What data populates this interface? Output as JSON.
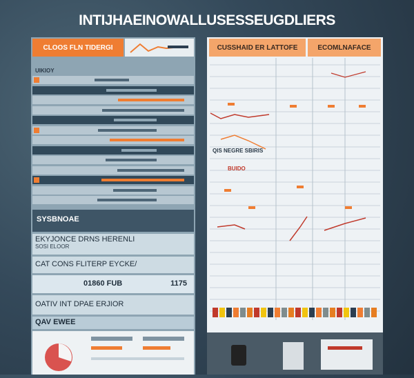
{
  "header": {
    "title": "INTIJHAEINOWALLUSESSEUGDLIERS"
  },
  "left_panel": {
    "banner": "CLOOS FLN TIDERGI",
    "top_label": "UIKIOY",
    "section_label": "SYSBNOAE",
    "items": [
      {
        "title": "EKYJONCE DRNS HERENLI",
        "subtitle": "SOSI ELOOR"
      },
      {
        "title": "CAT CONS FLITERP EYCKE/"
      },
      {
        "title": "01860 FUB",
        "value": "1175"
      },
      {
        "title": "OATIV INT DPAE ERJIOR"
      },
      {
        "title": "QAV EWEE"
      }
    ]
  },
  "right_panel": {
    "banners": [
      "CUSSHAID ER LATTOFE",
      "ECOMLNAFACE"
    ],
    "labels": [
      "QIS NEGRE SBIRIS",
      "BUIDO"
    ]
  }
}
